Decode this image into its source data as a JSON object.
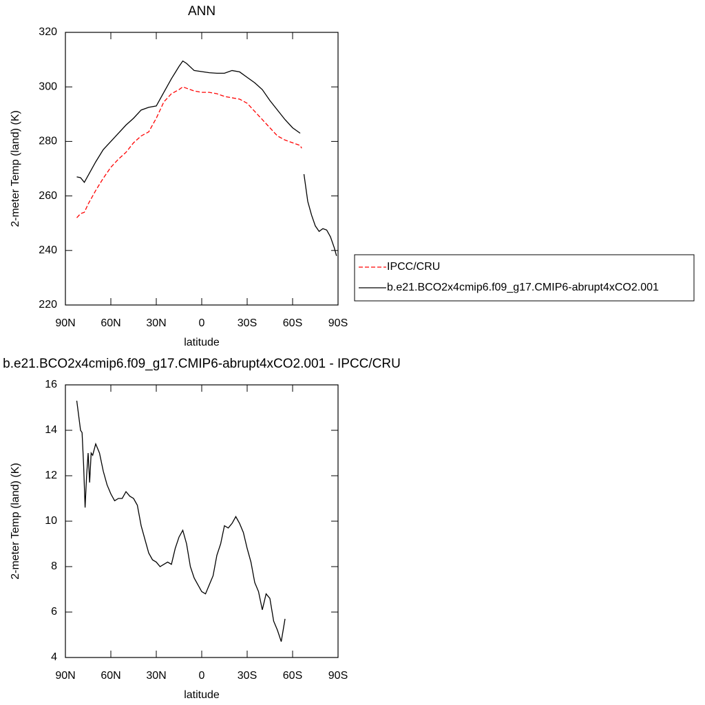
{
  "chart_data": [
    {
      "type": "line",
      "title": "ANN",
      "xlabel": "latitude",
      "ylabel": "2-meter Temp (land) (K)",
      "xlim": [
        90,
        -90
      ],
      "xticks": [
        {
          "value": 90,
          "label": "90N"
        },
        {
          "value": 60,
          "label": "60N"
        },
        {
          "value": 30,
          "label": "30N"
        },
        0,
        {
          "value": -30,
          "label": "30S"
        },
        {
          "value": -60,
          "label": "60S"
        },
        {
          "value": -90,
          "label": "90S"
        }
      ],
      "ylim": [
        220,
        320
      ],
      "yticks": [
        220,
        240,
        260,
        280,
        300,
        320
      ],
      "legend": "right",
      "x": [
        82.5,
        80,
        77.5,
        75,
        70,
        65,
        60,
        55,
        50,
        45,
        40,
        35,
        30,
        25,
        20,
        15,
        12.5,
        10,
        5,
        0,
        -5,
        -10,
        -15,
        -20,
        -25,
        -30,
        -35,
        -40,
        -45,
        -50,
        -55,
        -60,
        -65,
        -66,
        -67.5,
        -70,
        -72.5,
        -75,
        -77.5,
        -80,
        -82.5,
        -85,
        -87.5,
        -89
      ],
      "series": [
        {
          "name": "IPCC/CRU",
          "color": "#ff0000",
          "style": "dashed",
          "values": [
            252,
            253.5,
            254,
            257,
            262,
            266.5,
            270.5,
            273.5,
            276,
            279.5,
            282,
            283.5,
            288.5,
            294.5,
            297.5,
            299,
            300,
            299.5,
            298.5,
            298,
            298,
            297.5,
            296.5,
            296,
            295.5,
            294,
            291,
            288,
            285,
            282,
            280.5,
            279.5,
            278.5,
            277.5,
            null,
            null,
            null,
            null,
            null,
            null,
            null,
            null,
            null,
            null
          ]
        },
        {
          "name": "b.e21.BCO2x4cmip6.f09_g17.CMIP6-abrupt4xCO2.001",
          "color": "#000000",
          "style": "solid",
          "values": [
            267,
            266.7,
            265,
            267.5,
            272.5,
            277,
            280,
            283,
            286,
            288.5,
            291.5,
            292.5,
            293,
            298,
            303,
            307.5,
            309.5,
            308.6,
            306,
            305.6,
            305.2,
            305,
            305,
            306,
            305.5,
            303.5,
            301.5,
            299,
            295,
            291.5,
            288,
            285,
            283,
            null,
            268,
            258,
            253,
            249,
            247,
            248,
            247.5,
            245,
            241,
            238
          ]
        }
      ]
    },
    {
      "type": "line",
      "title": "b.e21.BCO2x4cmip6.f09_g17.CMIP6-abrupt4xCO2.001 - IPCC/CRU",
      "xlabel": "latitude",
      "ylabel": "2-meter Temp (land) (K)",
      "xlim": [
        90,
        -90
      ],
      "xticks": [
        {
          "value": 90,
          "label": "90N"
        },
        {
          "value": 60,
          "label": "60N"
        },
        {
          "value": 30,
          "label": "30N"
        },
        0,
        {
          "value": -30,
          "label": "30S"
        },
        {
          "value": -60,
          "label": "60S"
        },
        {
          "value": -90,
          "label": "90S"
        }
      ],
      "ylim": [
        4,
        16
      ],
      "yticks": [
        4,
        6,
        8,
        10,
        12,
        14,
        16
      ],
      "x": [
        82.5,
        80,
        79,
        78,
        77,
        76,
        75,
        74,
        73,
        72,
        70,
        67.5,
        65,
        62.5,
        60,
        57.5,
        55,
        52.5,
        50,
        47.5,
        45,
        42.5,
        40,
        37.5,
        35,
        32.5,
        30,
        27.5,
        25,
        22.5,
        20,
        17.5,
        15,
        12.5,
        10,
        7.5,
        5,
        2.5,
        0,
        -2.5,
        -5,
        -7.5,
        -10,
        -12.5,
        -15,
        -17.5,
        -20,
        -22.5,
        -25,
        -27.5,
        -30,
        -32.5,
        -35,
        -37.5,
        -40,
        -42.5,
        -45,
        -47.5,
        -50,
        -52.5,
        -55
      ],
      "series": [
        {
          "color": "#000000",
          "style": "solid",
          "values": [
            15.3,
            14.0,
            13.9,
            12.5,
            10.6,
            12.0,
            13.0,
            11.7,
            13.0,
            12.9,
            13.4,
            13.0,
            12.2,
            11.6,
            11.2,
            10.9,
            11.0,
            11.0,
            11.3,
            11.1,
            11.0,
            10.7,
            9.8,
            9.2,
            8.6,
            8.3,
            8.2,
            8.0,
            8.1,
            8.2,
            8.1,
            8.8,
            9.3,
            9.6,
            9.0,
            8.0,
            7.5,
            7.2,
            6.9,
            6.8,
            7.2,
            7.6,
            8.5,
            9.0,
            9.8,
            9.7,
            9.9,
            10.2,
            9.9,
            9.5,
            8.8,
            8.2,
            7.3,
            6.9,
            6.1,
            6.8,
            6.6,
            5.6,
            5.2,
            4.7,
            5.7
          ]
        }
      ]
    }
  ]
}
